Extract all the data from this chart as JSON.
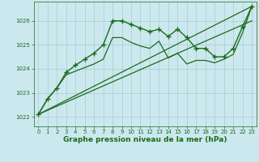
{
  "background_color": "#cce8ef",
  "grid_color": "#aacccc",
  "line_color": "#1a6b1a",
  "xlabel": "Graphe pression niveau de la mer (hPa)",
  "ylim": [
    1021.6,
    1026.8
  ],
  "xlim": [
    -0.5,
    23.5
  ],
  "yticks": [
    1022,
    1023,
    1024,
    1025,
    1026
  ],
  "xticks": [
    0,
    1,
    2,
    3,
    4,
    5,
    6,
    7,
    8,
    9,
    10,
    11,
    12,
    13,
    14,
    15,
    16,
    17,
    18,
    19,
    20,
    21,
    22,
    23
  ],
  "series": [
    {
      "x": [
        0,
        1,
        2,
        3,
        4,
        5,
        6,
        7,
        8,
        9,
        10,
        11,
        12,
        13,
        14,
        15,
        16,
        17,
        18,
        19,
        20,
        21,
        22,
        23
      ],
      "y": [
        1022.1,
        1022.75,
        1023.2,
        1023.85,
        1024.15,
        1024.4,
        1024.65,
        1025.0,
        1026.0,
        1026.0,
        1025.85,
        1025.7,
        1025.55,
        1025.65,
        1025.35,
        1025.65,
        1025.3,
        1024.85,
        1024.85,
        1024.5,
        1024.5,
        1024.85,
        1025.75,
        1026.6
      ],
      "marker": "+",
      "markersize": 4,
      "linewidth": 1.0,
      "with_markers": true,
      "zorder": 4
    },
    {
      "x": [
        0,
        1,
        2,
        3,
        4,
        5,
        6,
        7,
        8,
        9,
        10,
        11,
        12,
        13,
        14,
        15,
        16,
        17,
        18,
        19,
        20,
        21,
        22,
        23
      ],
      "y": [
        1022.1,
        1022.75,
        1023.2,
        1023.75,
        1023.9,
        1024.05,
        1024.2,
        1024.4,
        1025.3,
        1025.3,
        1025.1,
        1024.95,
        1024.85,
        1025.15,
        1024.45,
        1024.65,
        1024.2,
        1024.35,
        1024.35,
        1024.25,
        1024.4,
        1024.6,
        1025.5,
        1026.6
      ],
      "marker": null,
      "markersize": 0,
      "linewidth": 0.9,
      "with_markers": false,
      "zorder": 3
    },
    {
      "x": [
        0,
        23
      ],
      "y": [
        1022.1,
        1026.6
      ],
      "marker": null,
      "markersize": 0,
      "linewidth": 0.9,
      "with_markers": false,
      "zorder": 2
    },
    {
      "x": [
        0,
        23
      ],
      "y": [
        1022.1,
        1026.0
      ],
      "marker": null,
      "markersize": 0,
      "linewidth": 0.9,
      "with_markers": false,
      "zorder": 2
    }
  ],
  "tick_fontsize": 5.0,
  "label_fontsize": 6.5,
  "label_fontweight": "bold"
}
